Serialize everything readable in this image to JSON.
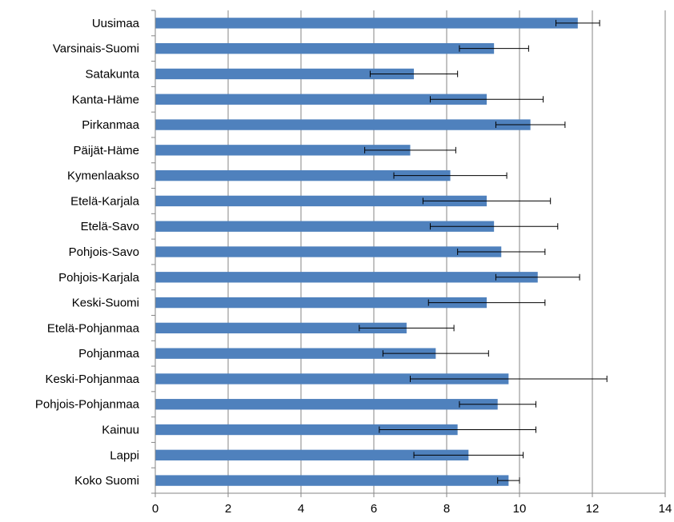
{
  "chart_data": {
    "type": "bar",
    "orientation": "horizontal",
    "categories": [
      "Uusimaa",
      "Varsinais-Suomi",
      "Satakunta",
      "Kanta-Häme",
      "Pirkanmaa",
      "Päijät-Häme",
      "Kymenlaakso",
      "Etelä-Karjala",
      "Etelä-Savo",
      "Pohjois-Savo",
      "Pohjois-Karjala",
      "Keski-Suomi",
      "Etelä-Pohjanmaa",
      "Pohjanmaa",
      "Keski-Pohjanmaa",
      "Pohjois-Pohjanmaa",
      "Kainuu",
      "Lappi",
      "Koko Suomi"
    ],
    "values": [
      11.6,
      9.3,
      7.1,
      9.1,
      10.3,
      7.0,
      8.1,
      9.1,
      9.3,
      9.5,
      10.5,
      9.1,
      6.9,
      7.7,
      9.7,
      9.4,
      8.3,
      8.6,
      9.7
    ],
    "error_low": [
      11.0,
      8.35,
      5.9,
      7.55,
      9.35,
      5.75,
      6.55,
      7.35,
      7.55,
      8.3,
      9.35,
      7.5,
      5.6,
      6.25,
      7.0,
      8.35,
      6.15,
      7.1,
      9.4
    ],
    "error_high": [
      12.2,
      10.25,
      8.3,
      10.65,
      11.25,
      8.25,
      9.65,
      10.85,
      11.05,
      10.7,
      11.65,
      10.7,
      8.2,
      9.15,
      12.4,
      10.45,
      10.45,
      10.1,
      10.0
    ],
    "xlim": [
      0,
      14
    ],
    "xticks": [
      0,
      2,
      4,
      6,
      8,
      10,
      12,
      14
    ],
    "grid": "vertical",
    "bar_color": "#4f81bd",
    "gridline_color": "#868686"
  }
}
